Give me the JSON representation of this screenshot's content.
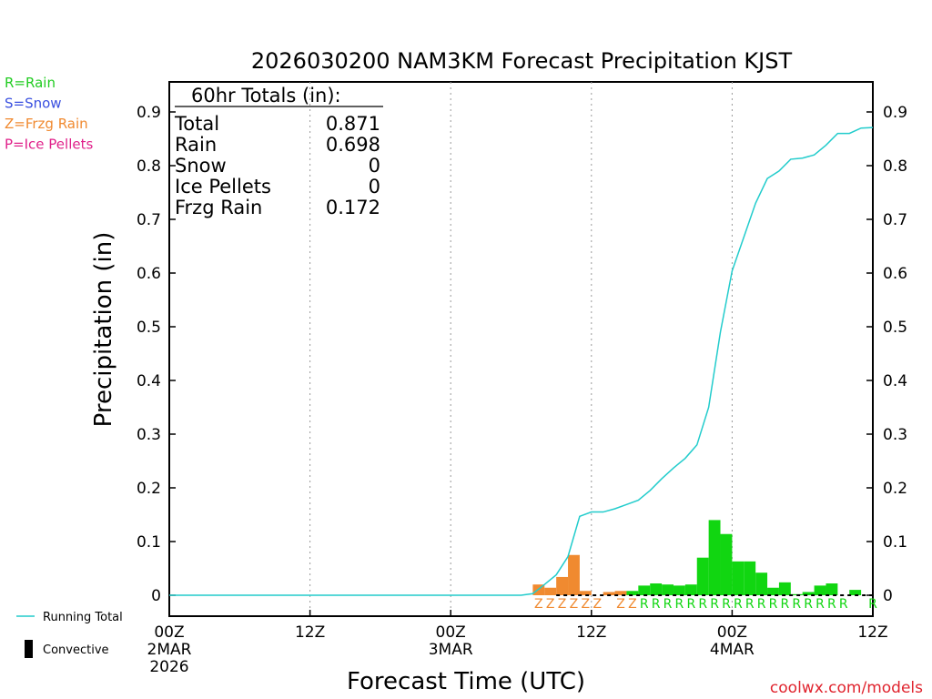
{
  "chart_data": {
    "type": "bar",
    "title": "2026030200 NAM3KM Forecast Precipitation KJST",
    "xlabel": "Forecast Time (UTC)",
    "ylabel": "Precipitation (in)",
    "ylim": [
      0,
      0.95
    ],
    "xlim_hours": [
      0,
      60
    ],
    "y_ticks": [
      "0",
      "0.1",
      "0.2",
      "0.3",
      "0.4",
      "0.5",
      "0.6",
      "0.7",
      "0.8",
      "0.9"
    ],
    "x_ticks": [
      {
        "hour": 0,
        "lines": [
          "00Z",
          "2MAR",
          "2026"
        ]
      },
      {
        "hour": 12,
        "lines": [
          "12Z"
        ]
      },
      {
        "hour": 24,
        "lines": [
          "00Z",
          "3MAR"
        ]
      },
      {
        "hour": 36,
        "lines": [
          "12Z"
        ]
      },
      {
        "hour": 48,
        "lines": [
          "00Z",
          "4MAR"
        ]
      },
      {
        "hour": 60,
        "lines": [
          "12Z"
        ]
      }
    ],
    "precip_type_legend": [
      {
        "label": "R=Rain",
        "color": "#22cc22"
      },
      {
        "label": "S=Snow",
        "color": "#3a50e0"
      },
      {
        "label": "Z=Frzg Rain",
        "color": "#f08a30"
      },
      {
        "label": "P=Ice Pellets",
        "color": "#e0208a"
      }
    ],
    "series_legend": {
      "running_total": "Running Total",
      "convective": "Convective"
    },
    "colors": {
      "rain": "#11d611",
      "freezing_rain": "#f08a30",
      "running_total": "#22cccc",
      "convective": "#000000",
      "watermark": "#e0242e"
    },
    "totals": {
      "header": "60hr Totals (in):",
      "rows": [
        {
          "label": "Total",
          "value": "0.871"
        },
        {
          "label": "Rain",
          "value": "0.698"
        },
        {
          "label": "Snow",
          "value": "0"
        },
        {
          "label": "Ice Pellets",
          "value": "0"
        },
        {
          "label": "Frzg Rain",
          "value": "0.172"
        }
      ]
    },
    "hourly_bars": [
      {
        "hour": 32,
        "value": 0.02,
        "type": "Z"
      },
      {
        "hour": 33,
        "value": 0.014,
        "type": "Z"
      },
      {
        "hour": 34,
        "value": 0.034,
        "type": "Z"
      },
      {
        "hour": 35,
        "value": 0.075,
        "type": "Z"
      },
      {
        "hour": 36,
        "value": 0.008,
        "type": "Z"
      },
      {
        "hour": 38,
        "value": 0.006,
        "type": "Z"
      },
      {
        "hour": 39,
        "value": 0.008,
        "type": "Z"
      },
      {
        "hour": 40,
        "value": 0.008,
        "type": "R"
      },
      {
        "hour": 41,
        "value": 0.018,
        "type": "R"
      },
      {
        "hour": 42,
        "value": 0.022,
        "type": "R"
      },
      {
        "hour": 43,
        "value": 0.02,
        "type": "R"
      },
      {
        "hour": 44,
        "value": 0.018,
        "type": "R"
      },
      {
        "hour": 45,
        "value": 0.02,
        "type": "R"
      },
      {
        "hour": 46,
        "value": 0.07,
        "type": "R"
      },
      {
        "hour": 47,
        "value": 0.14,
        "type": "R"
      },
      {
        "hour": 48,
        "value": 0.114,
        "type": "R"
      },
      {
        "hour": 49,
        "value": 0.063,
        "type": "R"
      },
      {
        "hour": 50,
        "value": 0.063,
        "type": "R"
      },
      {
        "hour": 51,
        "value": 0.042,
        "type": "R"
      },
      {
        "hour": 52,
        "value": 0.014,
        "type": "R"
      },
      {
        "hour": 53,
        "value": 0.024,
        "type": "R"
      },
      {
        "hour": 54,
        "value": 0.002,
        "type": "R"
      },
      {
        "hour": 55,
        "value": 0.006,
        "type": "R"
      },
      {
        "hour": 56,
        "value": 0.018,
        "type": "R"
      },
      {
        "hour": 57,
        "value": 0.022,
        "type": "R"
      },
      {
        "hour": 59,
        "value": 0.01,
        "type": "R"
      }
    ],
    "ptype_markers": [
      {
        "hour": 31.5,
        "label": "Z"
      },
      {
        "hour": 32.5,
        "label": "Z"
      },
      {
        "hour": 33.5,
        "label": "Z"
      },
      {
        "hour": 34.5,
        "label": "Z"
      },
      {
        "hour": 35.5,
        "label": "Z"
      },
      {
        "hour": 36.5,
        "label": "Z"
      },
      {
        "hour": 38.5,
        "label": "Z"
      },
      {
        "hour": 39.5,
        "label": "Z"
      },
      {
        "hour": 40.5,
        "label": "R"
      },
      {
        "hour": 41.5,
        "label": "R"
      },
      {
        "hour": 42.5,
        "label": "R"
      },
      {
        "hour": 43.5,
        "label": "R"
      },
      {
        "hour": 44.5,
        "label": "R"
      },
      {
        "hour": 45.5,
        "label": "R"
      },
      {
        "hour": 46.5,
        "label": "R"
      },
      {
        "hour": 47.5,
        "label": "R"
      },
      {
        "hour": 48.5,
        "label": "R"
      },
      {
        "hour": 49.5,
        "label": "R"
      },
      {
        "hour": 50.5,
        "label": "R"
      },
      {
        "hour": 51.5,
        "label": "R"
      },
      {
        "hour": 52.5,
        "label": "R"
      },
      {
        "hour": 53.5,
        "label": "R"
      },
      {
        "hour": 54.5,
        "label": "R"
      },
      {
        "hour": 55.5,
        "label": "R"
      },
      {
        "hour": 56.5,
        "label": "R"
      },
      {
        "hour": 57.5,
        "label": "R"
      },
      {
        "hour": 60,
        "label": "R"
      }
    ],
    "running_total": [
      {
        "hour": 0,
        "value": 0
      },
      {
        "hour": 30,
        "value": 0
      },
      {
        "hour": 31,
        "value": 0.003
      },
      {
        "hour": 32,
        "value": 0.02
      },
      {
        "hour": 33,
        "value": 0.038
      },
      {
        "hour": 34,
        "value": 0.072
      },
      {
        "hour": 35,
        "value": 0.147
      },
      {
        "hour": 36,
        "value": 0.155
      },
      {
        "hour": 37,
        "value": 0.155
      },
      {
        "hour": 38,
        "value": 0.161
      },
      {
        "hour": 39,
        "value": 0.169
      },
      {
        "hour": 40,
        "value": 0.177
      },
      {
        "hour": 41,
        "value": 0.195
      },
      {
        "hour": 42,
        "value": 0.217
      },
      {
        "hour": 43,
        "value": 0.237
      },
      {
        "hour": 44,
        "value": 0.255
      },
      {
        "hour": 45,
        "value": 0.28
      },
      {
        "hour": 46,
        "value": 0.35
      },
      {
        "hour": 47,
        "value": 0.49
      },
      {
        "hour": 48,
        "value": 0.604
      },
      {
        "hour": 49,
        "value": 0.667
      },
      {
        "hour": 50,
        "value": 0.73
      },
      {
        "hour": 51,
        "value": 0.776
      },
      {
        "hour": 52,
        "value": 0.79
      },
      {
        "hour": 53,
        "value": 0.812
      },
      {
        "hour": 54,
        "value": 0.814
      },
      {
        "hour": 55,
        "value": 0.82
      },
      {
        "hour": 56,
        "value": 0.838
      },
      {
        "hour": 57,
        "value": 0.86
      },
      {
        "hour": 58,
        "value": 0.86
      },
      {
        "hour": 59,
        "value": 0.87
      },
      {
        "hour": 60,
        "value": 0.871
      }
    ]
  },
  "watermark": "coolwx.com/models"
}
